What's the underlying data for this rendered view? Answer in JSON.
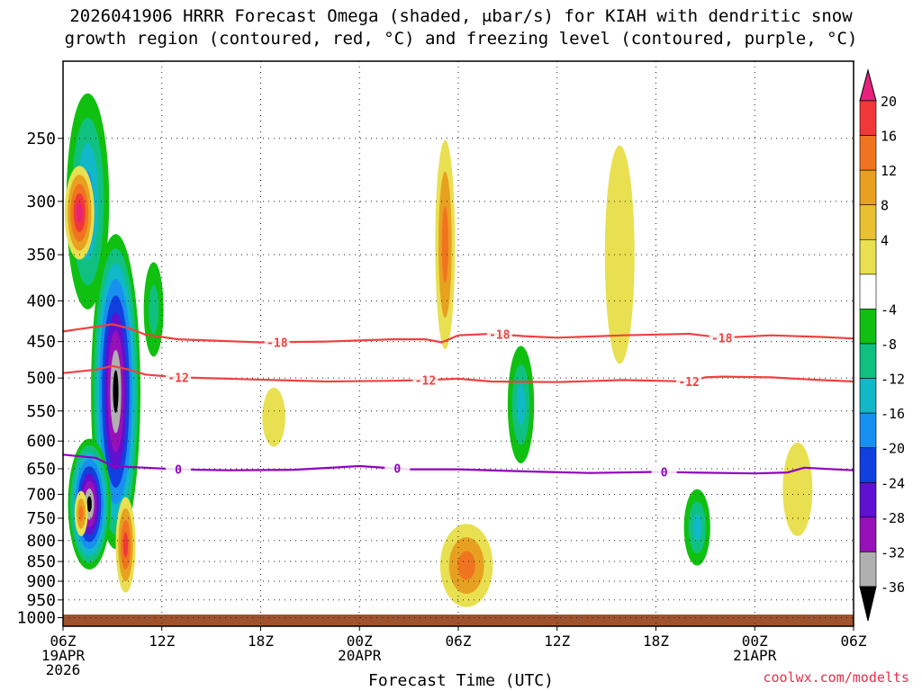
{
  "title": {
    "line1": "2026041906 HRRR Forecast Omega (shaded, μbar/s) for KIAH with dendritic snow",
    "line2": "growth region (contoured, red, °C) and freezing level (contoured, purple, °C)"
  },
  "watermark": "coolwx.com/modelts",
  "chart_data": {
    "type": "heatmap",
    "xlabel": "Forecast Time (UTC)",
    "x_hours": [
      0,
      48
    ],
    "x_ticks": [
      {
        "h": 0,
        "l1": "06Z",
        "l2": "19APR",
        "l3": "2026"
      },
      {
        "h": 6,
        "l1": "12Z",
        "l2": "",
        "l3": ""
      },
      {
        "h": 12,
        "l1": "18Z",
        "l2": "",
        "l3": ""
      },
      {
        "h": 18,
        "l1": "00Z",
        "l2": "20APR",
        "l3": ""
      },
      {
        "h": 24,
        "l1": "06Z",
        "l2": "",
        "l3": ""
      },
      {
        "h": 30,
        "l1": "12Z",
        "l2": "",
        "l3": ""
      },
      {
        "h": 36,
        "l1": "18Z",
        "l2": "",
        "l3": ""
      },
      {
        "h": 42,
        "l1": "00Z",
        "l2": "21APR",
        "l3": ""
      },
      {
        "h": 48,
        "l1": "06Z",
        "l2": "",
        "l3": ""
      }
    ],
    "y_pressure_ticks": [
      250,
      300,
      350,
      400,
      450,
      500,
      550,
      600,
      650,
      700,
      750,
      800,
      850,
      900,
      950,
      1000
    ],
    "y_range_hpa": [
      200,
      1025
    ],
    "colorbar": {
      "labels": [
        20,
        16,
        12,
        8,
        4,
        -4,
        -8,
        -12,
        -16,
        -20,
        -24,
        -28,
        -32,
        -36
      ],
      "colors": [
        "#e8207e",
        "#f03838",
        "#f07420",
        "#e8a020",
        "#e8c030",
        "#e8e050",
        "#ffffff",
        "#10c010",
        "#10c080",
        "#10b8c8",
        "#1890f0",
        "#1040e0",
        "#6010d0",
        "#9810b8",
        "#b0b0b0",
        "#000000"
      ]
    },
    "contours": [
      {
        "name": "dendritic -18",
        "color": "#f04040",
        "label": "-18",
        "points": [
          [
            0,
            437
          ],
          [
            1,
            434
          ],
          [
            2,
            431
          ],
          [
            3,
            428
          ],
          [
            4,
            433
          ],
          [
            5,
            441
          ],
          [
            7,
            447
          ],
          [
            12,
            451
          ],
          [
            16,
            450
          ],
          [
            20,
            447
          ],
          [
            22,
            447
          ],
          [
            23,
            451
          ],
          [
            24,
            442
          ],
          [
            26,
            440
          ],
          [
            28,
            443
          ],
          [
            30,
            445
          ],
          [
            34,
            442
          ],
          [
            38,
            440
          ],
          [
            40,
            445
          ],
          [
            43,
            442
          ],
          [
            46,
            444
          ],
          [
            48,
            446
          ]
        ],
        "labels_at": [
          13,
          26.5,
          40
        ]
      },
      {
        "name": "dendritic -12",
        "color": "#f04040",
        "label": "-12",
        "points": [
          [
            0,
            493
          ],
          [
            2,
            488
          ],
          [
            3,
            483
          ],
          [
            4,
            488
          ],
          [
            5,
            495
          ],
          [
            7,
            499
          ],
          [
            10,
            501
          ],
          [
            16,
            505
          ],
          [
            20,
            504
          ],
          [
            22,
            503
          ],
          [
            24,
            501
          ],
          [
            26,
            505
          ],
          [
            30,
            506
          ],
          [
            34,
            503
          ],
          [
            38,
            505
          ],
          [
            39,
            499
          ],
          [
            40,
            498
          ],
          [
            43,
            499
          ],
          [
            46,
            503
          ],
          [
            48,
            505
          ]
        ],
        "labels_at": [
          7,
          22,
          38
        ]
      },
      {
        "name": "freezing level 0",
        "color": "#9000c0",
        "label": "0",
        "points": [
          [
            0,
            624
          ],
          [
            2,
            630
          ],
          [
            3,
            645
          ],
          [
            5,
            648
          ],
          [
            7,
            651
          ],
          [
            10,
            653
          ],
          [
            14,
            652
          ],
          [
            18,
            645
          ],
          [
            21,
            651
          ],
          [
            24,
            651
          ],
          [
            28,
            655
          ],
          [
            32,
            658
          ],
          [
            36,
            656
          ],
          [
            38,
            657
          ],
          [
            42,
            659
          ],
          [
            44,
            657
          ],
          [
            45,
            648
          ],
          [
            48,
            653
          ]
        ],
        "labels_at": [
          7,
          20.3,
          36.5
        ]
      }
    ],
    "features": [
      {
        "h": 1.5,
        "p": 300,
        "rh": 1.3,
        "rp": 110,
        "v": -18
      },
      {
        "h": 3.2,
        "p": 520,
        "rh": 1.5,
        "rp": 300,
        "v": -36
      },
      {
        "h": 1.6,
        "p": 720,
        "rh": 1.3,
        "rp": 150,
        "v": -36
      },
      {
        "h": 1.0,
        "p": 310,
        "rh": 0.9,
        "rp": 45,
        "v": 20
      },
      {
        "h": 1.1,
        "p": 740,
        "rh": 0.4,
        "rp": 50,
        "v": 14
      },
      {
        "h": 3.8,
        "p": 810,
        "rh": 0.6,
        "rp": 120,
        "v": 16
      },
      {
        "h": 5.5,
        "p": 410,
        "rh": 0.6,
        "rp": 60,
        "v": -8
      },
      {
        "h": 12.8,
        "p": 560,
        "rh": 0.7,
        "rp": 50,
        "v": 4
      },
      {
        "h": 23.2,
        "p": 340,
        "rh": 0.6,
        "rp": 120,
        "v": 14
      },
      {
        "h": 27.8,
        "p": 540,
        "rh": 0.8,
        "rp": 100,
        "v": -12
      },
      {
        "h": 33.8,
        "p": 350,
        "rh": 0.9,
        "rp": 130,
        "v": 4
      },
      {
        "h": 24.5,
        "p": 860,
        "rh": 1.6,
        "rp": 110,
        "v": 12
      },
      {
        "h": 38.5,
        "p": 770,
        "rh": 0.8,
        "rp": 90,
        "v": -12
      },
      {
        "h": 44.6,
        "p": 690,
        "rh": 0.9,
        "rp": 100,
        "v": 6
      }
    ]
  }
}
